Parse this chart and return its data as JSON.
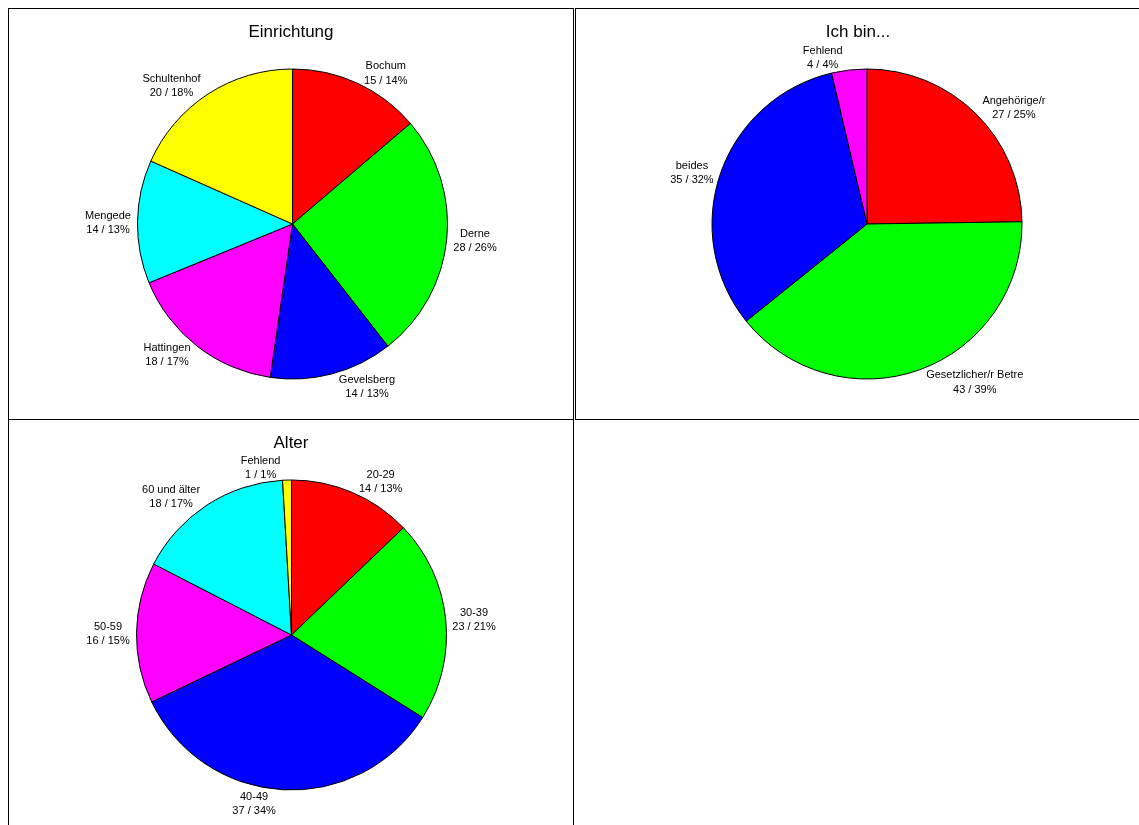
{
  "chart_data": [
    {
      "type": "pie",
      "title": "Einrichtung",
      "categories": [
        "Bochum",
        "Derne",
        "Gevelsberg",
        "Hattingen",
        "Mengede",
        "Schultenhof"
      ],
      "values": [
        15,
        28,
        14,
        18,
        14,
        20
      ],
      "value_labels": [
        "15 / 14%",
        "28 / 26%",
        "14 / 13%",
        "18 / 17%",
        "14 / 13%",
        "20 / 18%"
      ],
      "colors": [
        "#ff0000",
        "#00ff00",
        "#0000ff",
        "#ff00ff",
        "#00ffff",
        "#ffff00"
      ],
      "legend": false
    },
    {
      "type": "pie",
      "title": "Ich bin...",
      "categories": [
        "Angehörige/r",
        "Gesetzlicher/r Betre",
        "beides",
        "Fehlend"
      ],
      "values": [
        27,
        43,
        35,
        4
      ],
      "value_labels": [
        "27 / 25%",
        "43 / 39%",
        "35 / 32%",
        "4 / 4%"
      ],
      "colors": [
        "#ff0000",
        "#00ff00",
        "#0000ff",
        "#ff00ff"
      ],
      "legend": false
    },
    {
      "type": "pie",
      "title": "Alter",
      "categories": [
        "20-29",
        "30-39",
        "40-49",
        "50-59",
        "60 und älter",
        "Fehlend"
      ],
      "values": [
        14,
        23,
        37,
        16,
        18,
        1
      ],
      "value_labels": [
        "14 / 13%",
        "23 / 21%",
        "37 / 34%",
        "16 / 15%",
        "18 / 17%",
        "1 / 1%"
      ],
      "colors": [
        "#ff0000",
        "#00ff00",
        "#0000ff",
        "#ff00ff",
        "#00ffff",
        "#ffff00"
      ],
      "legend": false
    }
  ]
}
